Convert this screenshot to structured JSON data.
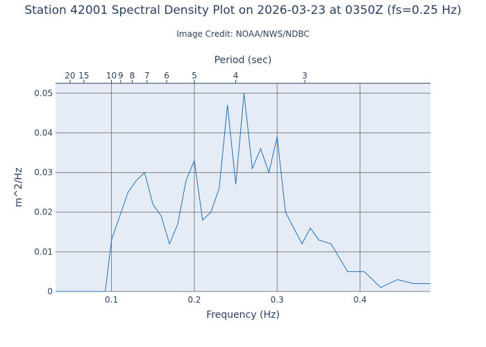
{
  "title": "Station 42001 Spectral Density Plot  on 2026-03-23 at 0350Z (fs=0.25 Hz)",
  "credit": "Image Credit: NOAA/NWS/NDBC",
  "colors": {
    "background": "#e5ecf6",
    "grid": "#7f7f7f",
    "line": "#1f6fb0",
    "text": "#2a3f5f"
  },
  "chart_data": {
    "type": "line",
    "title": "Station 42001 Spectral Density Plot  on 2026-03-23 at 0350Z (fs=0.25 Hz)",
    "xlabel": "Frequency (Hz)",
    "ylabel": "m^2/Hz",
    "x2label": "Period (sec)",
    "xlim": [
      0.0325,
      0.485
    ],
    "ylim": [
      0,
      0.0525
    ],
    "grid": true,
    "x_ticks": [
      0.1,
      0.2,
      0.3,
      0.4
    ],
    "x_tick_labels": [
      "0.1",
      "0.2",
      "0.3",
      "0.4"
    ],
    "y_ticks": [
      0,
      0.01,
      0.02,
      0.03,
      0.04,
      0.05
    ],
    "y_tick_labels": [
      "0",
      "0.01",
      "0.02",
      "0.03",
      "0.04",
      "0.05"
    ],
    "period_ticks": [
      20,
      15,
      10,
      9,
      8,
      7,
      6,
      5,
      4,
      3
    ],
    "period_tick_labels": [
      "20",
      "15",
      "10",
      "9",
      "8",
      "7",
      "6",
      "5",
      "4",
      "3"
    ],
    "x": [
      0.0325,
      0.0925,
      0.1,
      0.11,
      0.12,
      0.13,
      0.14,
      0.15,
      0.16,
      0.17,
      0.18,
      0.19,
      0.2,
      0.21,
      0.22,
      0.23,
      0.24,
      0.25,
      0.26,
      0.27,
      0.28,
      0.29,
      0.3,
      0.31,
      0.32,
      0.33,
      0.34,
      0.35,
      0.365,
      0.385,
      0.405,
      0.425,
      0.445,
      0.465,
      0.485
    ],
    "y": [
      0,
      0,
      0.013,
      0.019,
      0.025,
      0.028,
      0.03,
      0.022,
      0.019,
      0.012,
      0.017,
      0.028,
      0.033,
      0.018,
      0.02,
      0.026,
      0.047,
      0.027,
      0.05,
      0.031,
      0.036,
      0.03,
      0.039,
      0.02,
      0.016,
      0.012,
      0.016,
      0.013,
      0.012,
      0.005,
      0.005,
      0.001,
      0.003,
      0.002,
      0.002
    ]
  }
}
